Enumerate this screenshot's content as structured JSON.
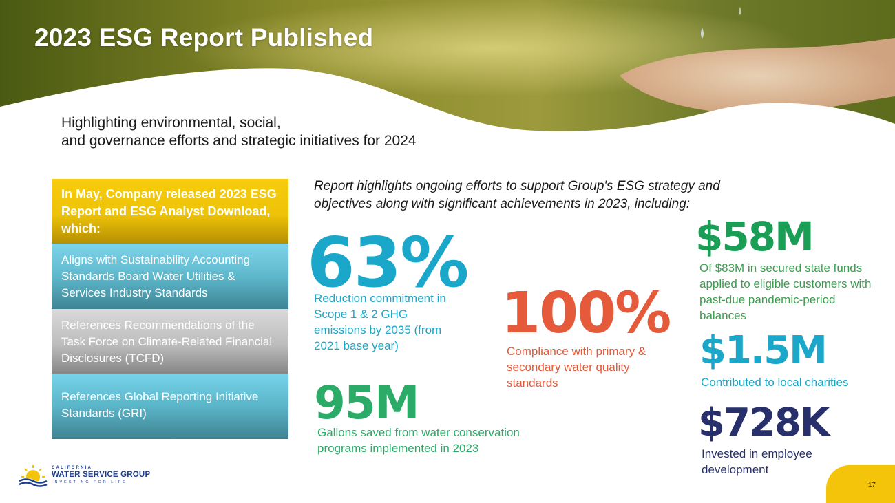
{
  "slide": {
    "title": "2023 ESG Report Published",
    "subtitle_line1": "Highlighting environmental, social,",
    "subtitle_line2": "and governance efforts and strategic initiatives for 2024",
    "page_number": "17"
  },
  "left_panel": {
    "items": [
      {
        "text": "In May, Company released 2023 ESG Report and ESG Analyst Download, which:"
      },
      {
        "text": "Aligns with Sustainability Accounting Standards Board Water Utilities & Services Industry Standards"
      },
      {
        "text": "References Recommendations of the Task Force on Climate-Related Financial Disclosures (TCFD)"
      },
      {
        "text": "References Global Reporting Initiative Standards (GRI)"
      }
    ]
  },
  "intro": "Report highlights ongoing efforts to support Group's ESG strategy and objectives along with significant achievements in 2023, including:",
  "stats": [
    {
      "value": "63%",
      "description": "Reduction commitment in Scope 1 & 2 GHG emissions by 2035 (from 2021 base year)"
    },
    {
      "value": "100%",
      "description": "Compliance with primary & secondary water quality standards"
    },
    {
      "value": "95M",
      "description": "Gallons saved from water conservation programs implemented in 2023"
    },
    {
      "value": "$58M",
      "description": "Of $83M in secured state funds applied to eligible customers with past-due pandemic-period balances"
    },
    {
      "value": "$1.5M",
      "description": "Contributed to local charities"
    },
    {
      "value": "$728K",
      "description": "Invested in employee development"
    }
  ],
  "logo": {
    "top": "CALIFORNIA",
    "main": "WATER SERVICE GROUP",
    "tagline": "INVESTING FOR LIFE"
  },
  "colors": {
    "accent_yellow": "#f4c40a",
    "teal": "#1aa7c9",
    "orange": "#e55a3a",
    "green": "#2bab67",
    "navy": "#27306b"
  }
}
